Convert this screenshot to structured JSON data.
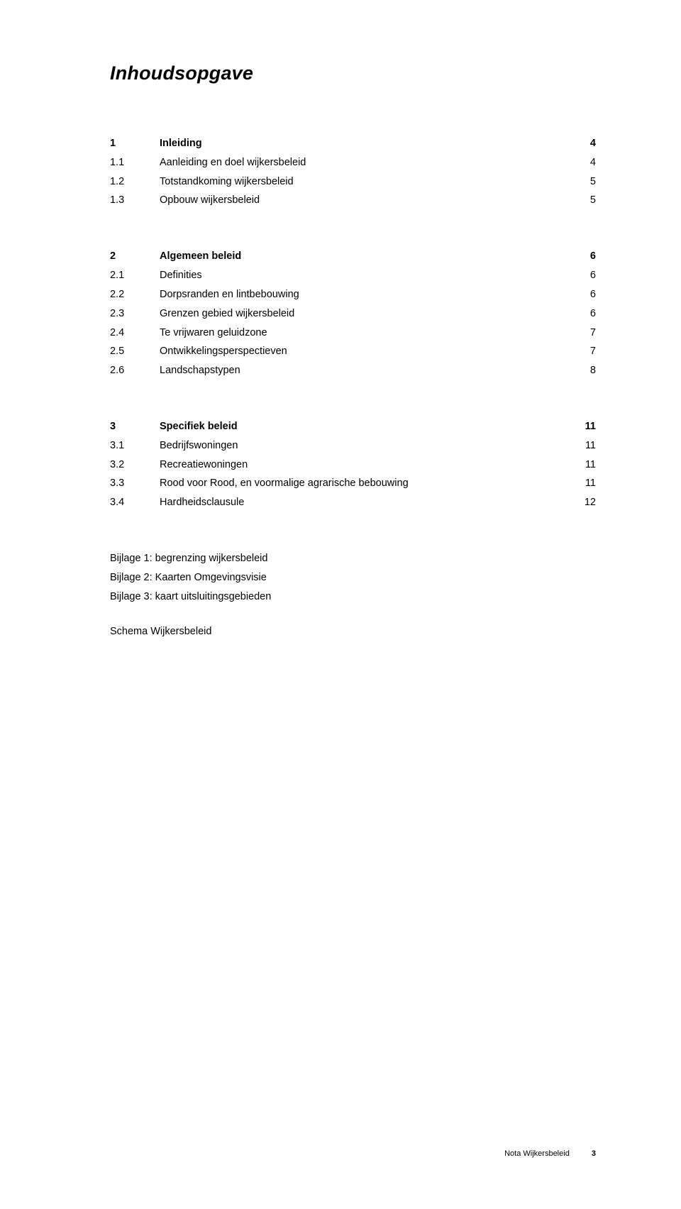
{
  "title": "Inhoudsopgave",
  "sections": [
    {
      "head": {
        "num": "1",
        "label": "Inleiding",
        "page": "4"
      },
      "items": [
        {
          "num": "1.1",
          "label": "Aanleiding en doel wijkersbeleid",
          "page": "4"
        },
        {
          "num": "1.2",
          "label": "Totstandkoming wijkersbeleid",
          "page": "5"
        },
        {
          "num": "1.3",
          "label": "Opbouw wijkersbeleid",
          "page": "5"
        }
      ]
    },
    {
      "head": {
        "num": "2",
        "label": "Algemeen beleid",
        "page": "6"
      },
      "items": [
        {
          "num": "2.1",
          "label": "Definities",
          "page": "6"
        },
        {
          "num": "2.2",
          "label": "Dorpsranden en lintbebouwing",
          "page": "6"
        },
        {
          "num": "2.3",
          "label": "Grenzen gebied wijkersbeleid",
          "page": "6"
        },
        {
          "num": "2.4",
          "label": "Te vrijwaren geluidzone",
          "page": "7"
        },
        {
          "num": "2.5",
          "label": "Ontwikkelingsperspectieven",
          "page": "7"
        },
        {
          "num": "2.6",
          "label": "Landschapstypen",
          "page": "8"
        }
      ]
    },
    {
      "head": {
        "num": "3",
        "label": "Specifiek beleid",
        "page": "11"
      },
      "items": [
        {
          "num": "3.1",
          "label": "Bedrijfswoningen",
          "page": "11"
        },
        {
          "num": "3.2",
          "label": "Recreatiewoningen",
          "page": "11"
        },
        {
          "num": "3.3",
          "label": "Rood voor Rood, en voormalige agrarische bebouwing",
          "page": "11"
        },
        {
          "num": "3.4",
          "label": "Hardheidsclausule",
          "page": "12"
        }
      ]
    }
  ],
  "appendices": [
    "Bijlage 1: begrenzing wijkersbeleid",
    "Bijlage 2: Kaarten Omgevingsvisie",
    "Bijlage 3: kaart uitsluitingsgebieden"
  ],
  "schema": "Schema Wijkersbeleid",
  "footer": {
    "label": "Nota Wijkersbeleid",
    "page": "3"
  }
}
